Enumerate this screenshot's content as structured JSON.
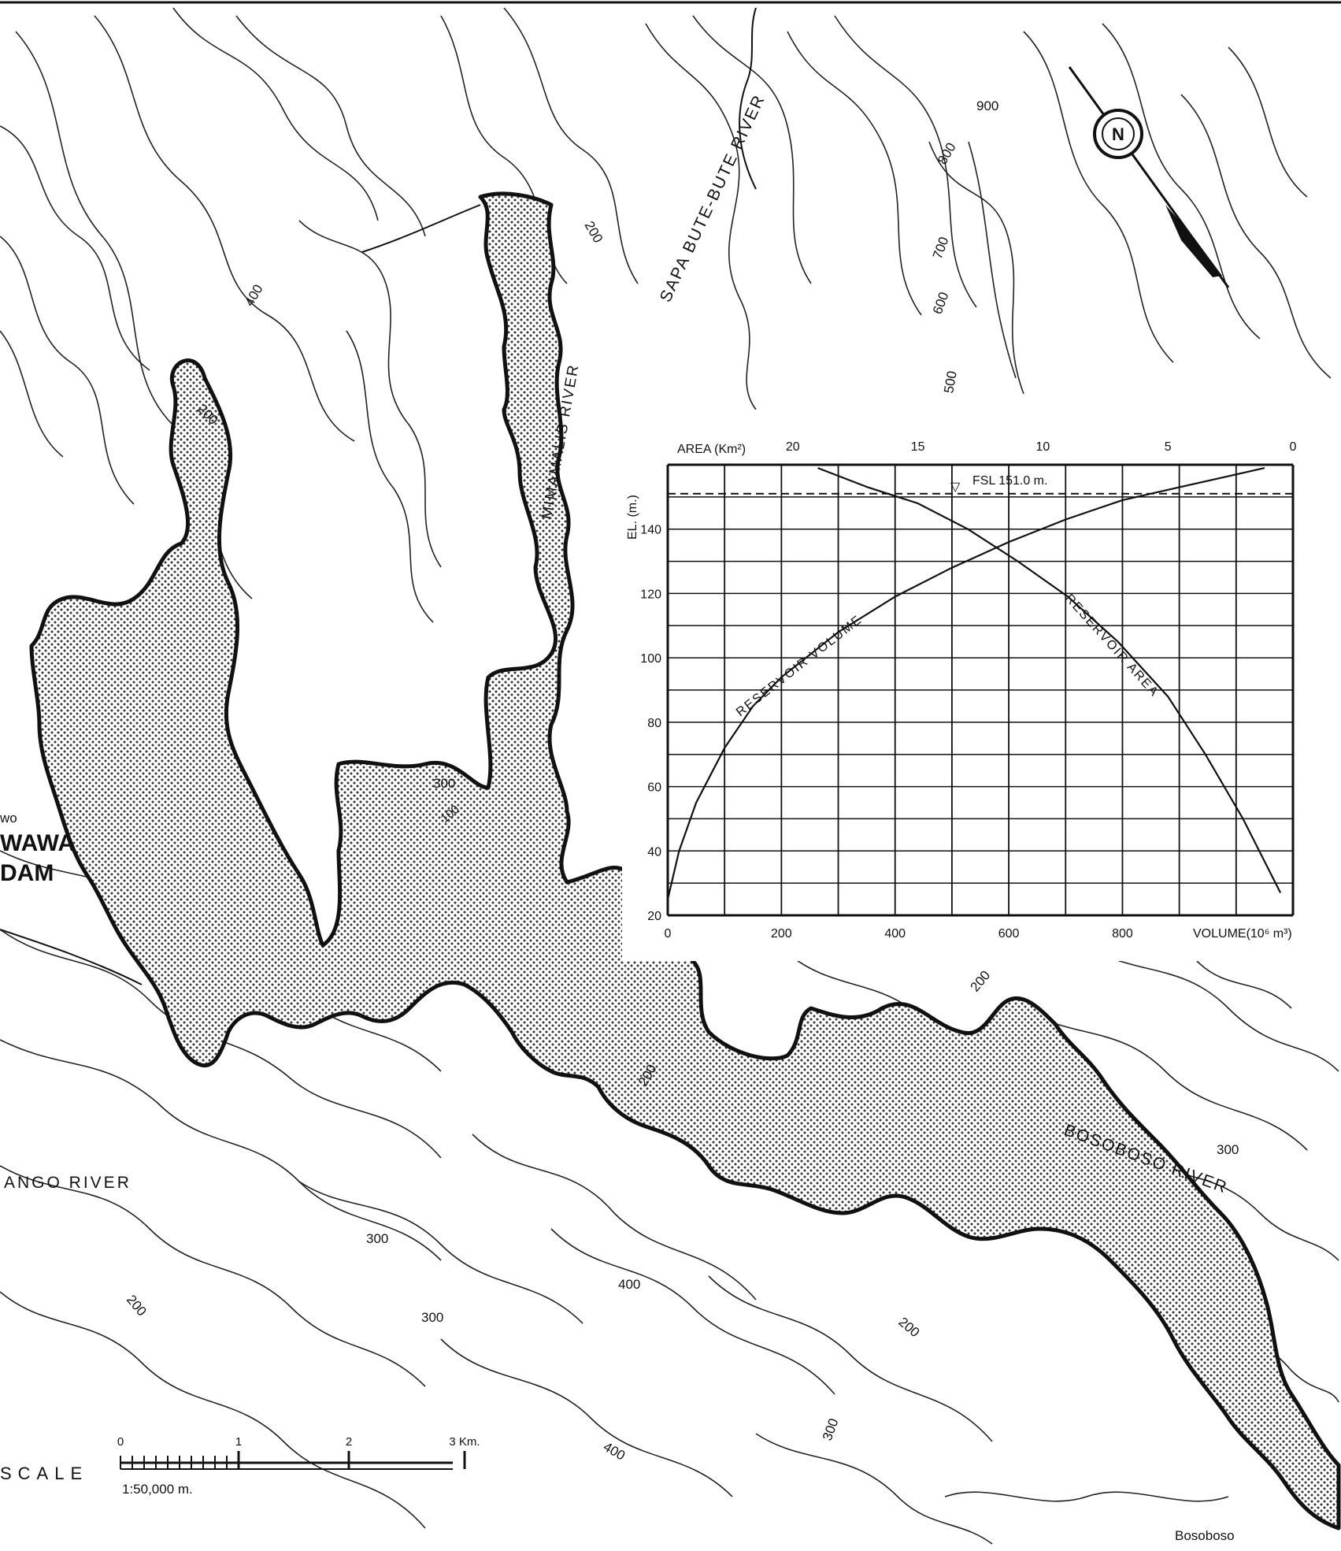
{
  "title": "",
  "rivers": [
    "SAPA BUTE-BUTE RIVER",
    "MIMAMALIS RIVER",
    "BOSOBOSO RIVER",
    "ANGO RIVER"
  ],
  "places": [
    "Bosoboso",
    "DAM",
    "WAWA",
    "wo"
  ],
  "contour_labels": [
    "900",
    "800",
    "700",
    "600",
    "500",
    "400",
    "300",
    "200",
    "100"
  ],
  "scale": {
    "caption": "SCALE",
    "ticks": [
      "0",
      "1",
      "2",
      "3 Km."
    ],
    "ratio": "1:50,000 m."
  },
  "north_arrow": {
    "letter": "N"
  },
  "colors": {
    "ink": "#111111",
    "paper": "#ffffff",
    "stipple": "#333333"
  },
  "chart_data": {
    "type": "line",
    "title": "",
    "x_top_label": "AREA (Km²)",
    "x_top_ticks": [
      "20",
      "15",
      "10",
      "5",
      "0"
    ],
    "x_bottom_label": "VOLUME(10⁶ m³)",
    "x_bottom_ticks": [
      "0",
      "200",
      "400",
      "600",
      "800"
    ],
    "ylabel": "EL. (m.)",
    "y_ticks": [
      "20",
      "40",
      "60",
      "80",
      "100",
      "120",
      "140"
    ],
    "ylim": [
      20,
      160
    ],
    "volume_range": [
      0,
      1100
    ],
    "area_range": [
      25,
      0
    ],
    "fsl": {
      "label": "FSL 151.0 m.",
      "value": 151.0
    },
    "series": [
      {
        "name": "RESERVOIR VOLUME",
        "axis": "volume",
        "points": [
          [
            0,
            25
          ],
          [
            20,
            40
          ],
          [
            50,
            55
          ],
          [
            100,
            72
          ],
          [
            150,
            85
          ],
          [
            200,
            94
          ],
          [
            300,
            108
          ],
          [
            400,
            119
          ],
          [
            500,
            128
          ],
          [
            600,
            136
          ],
          [
            700,
            143
          ],
          [
            800,
            149
          ],
          [
            900,
            153
          ],
          [
            1000,
            157
          ],
          [
            1050,
            159
          ]
        ]
      },
      {
        "name": "RESERVOIR AREA",
        "axis": "area",
        "points": [
          [
            19,
            159
          ],
          [
            17,
            153
          ],
          [
            15,
            148
          ],
          [
            13,
            140
          ],
          [
            11,
            130
          ],
          [
            9,
            119
          ],
          [
            7,
            105
          ],
          [
            5,
            88
          ],
          [
            3.5,
            70
          ],
          [
            2,
            50
          ],
          [
            0.5,
            27
          ]
        ]
      }
    ]
  }
}
